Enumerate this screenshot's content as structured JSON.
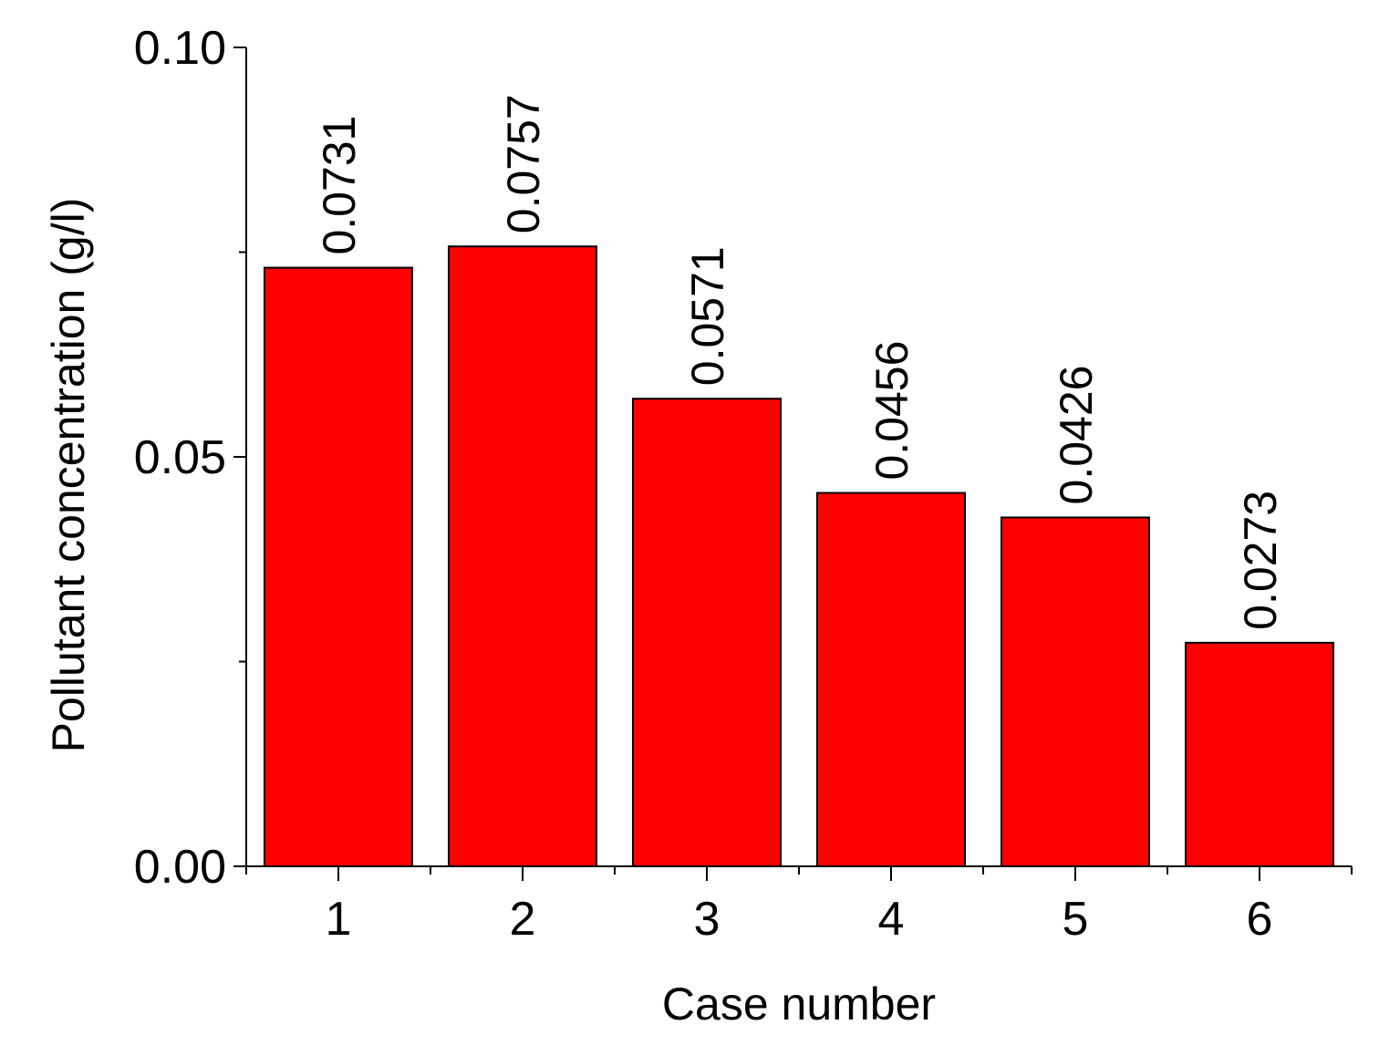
{
  "chart_data": {
    "type": "bar",
    "categories": [
      "1",
      "2",
      "3",
      "4",
      "5",
      "6"
    ],
    "values": [
      0.0731,
      0.0757,
      0.0571,
      0.0456,
      0.0426,
      0.0273
    ],
    "data_labels": [
      "0.0731",
      "0.0757",
      "0.0571",
      "0.0456",
      "0.0426",
      "0.0273"
    ],
    "title": "",
    "xlabel": "Case number",
    "ylabel": "Pollutant concentration (g/l)",
    "ylim": [
      0,
      0.1
    ],
    "y_major_ticks": [
      0.0,
      0.05,
      0.1
    ],
    "y_tick_labels": [
      "0.00",
      "0.05",
      "0.10"
    ],
    "y_minor_ticks": [
      0.025,
      0.075
    ],
    "grid": false,
    "legend": "none",
    "bar_color": "#ff0000",
    "bar_edge_color": "#000000"
  }
}
